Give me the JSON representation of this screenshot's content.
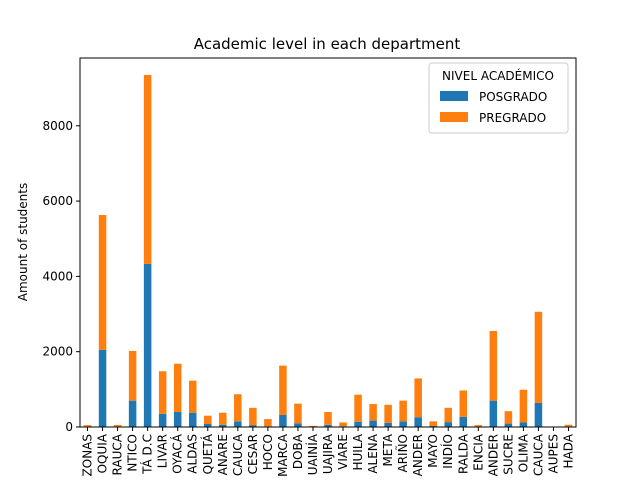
{
  "chart_data": {
    "type": "bar",
    "stacked": true,
    "title": "Academic level in each department",
    "xlabel": "",
    "ylabel": "Amount of students",
    "ylim": [
      0,
      9800
    ],
    "yticks": [
      0,
      2000,
      4000,
      6000,
      8000
    ],
    "grid": false,
    "legend": {
      "title": "NIVEL ACADÉMICO",
      "placement": "top-right"
    },
    "categories": [
      "ZONAS",
      "OQUIA",
      "RAUCA",
      "NTICO",
      "TÁ D.C",
      "LIVAR",
      "OYACÁ",
      "ALDAS",
      "QUETÁ",
      "ANARE",
      "CAUCA",
      "CESAR",
      "HOCO",
      "MARCA",
      "DOBA",
      "UAINÍA",
      "UAJIRA",
      "VIARE",
      "HUILA",
      "ALENA",
      "META",
      "ARIÑO",
      "ANDER",
      "MAYO",
      "INDÍO",
      "RALDA",
      "ENCIA",
      "ANDER",
      "SUCRE",
      "OLIMA",
      "CAUCA",
      "AUPES",
      "HADA"
    ],
    "series": [
      {
        "name": "POSGRADO",
        "color": "#1f77b4",
        "values": [
          5,
          2050,
          10,
          700,
          4330,
          350,
          400,
          380,
          80,
          60,
          150,
          50,
          20,
          320,
          100,
          5,
          60,
          20,
          140,
          170,
          110,
          150,
          260,
          30,
          130,
          270,
          10,
          700,
          90,
          120,
          640,
          0,
          10
        ]
      },
      {
        "name": "PREGRADO",
        "color": "#ff7f0e",
        "values": [
          45,
          3580,
          45,
          1320,
          5020,
          1130,
          1280,
          850,
          220,
          320,
          720,
          460,
          190,
          1310,
          520,
          25,
          340,
          100,
          720,
          440,
          480,
          550,
          1030,
          120,
          380,
          700,
          40,
          1850,
          330,
          870,
          2420,
          0,
          50
        ]
      }
    ]
  }
}
